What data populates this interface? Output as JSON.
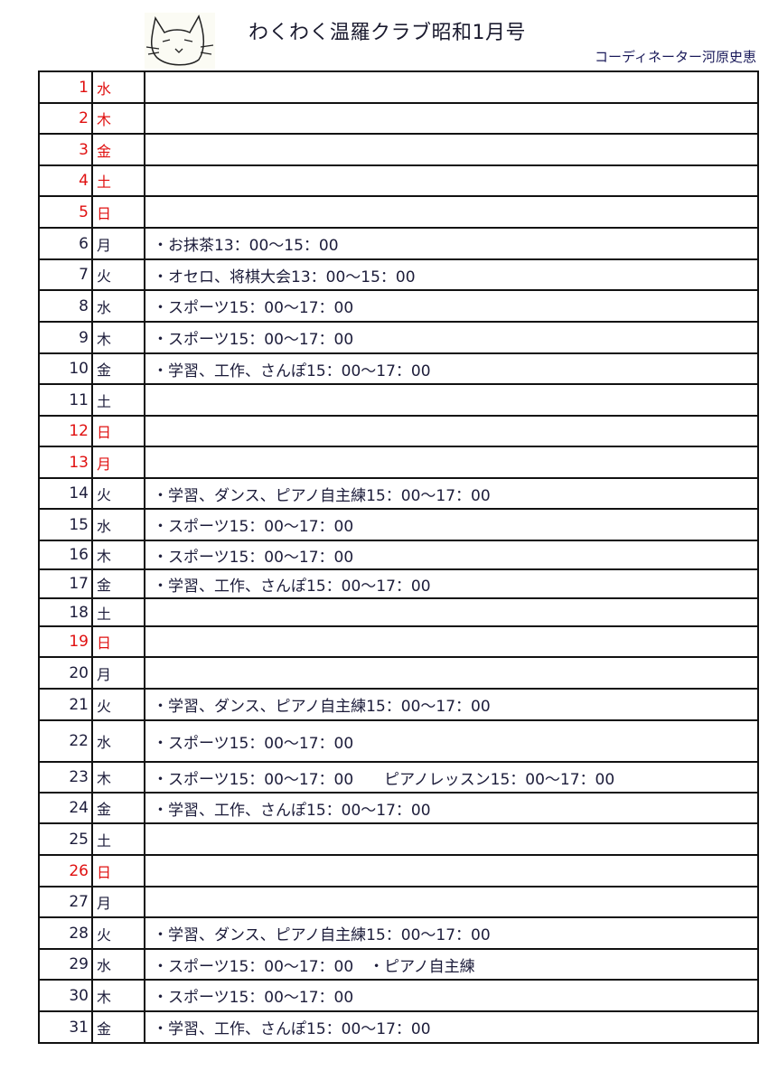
{
  "header": {
    "title": "わくわく温羅クラブ昭和1月号",
    "coordinator": "コーディネーター河原史恵",
    "logo": "cat-drawing"
  },
  "colors": {
    "holiday": "#e01010",
    "text": "#1c1c3a"
  },
  "days": [
    {
      "d": "1",
      "w": "水",
      "e": "",
      "red": true
    },
    {
      "d": "2",
      "w": "木",
      "e": "",
      "red": true
    },
    {
      "d": "3",
      "w": "金",
      "e": "",
      "red": true
    },
    {
      "d": "4",
      "w": "土",
      "e": "",
      "red": true
    },
    {
      "d": "5",
      "w": "日",
      "e": "",
      "red": true
    },
    {
      "d": "6",
      "w": "月",
      "e": "・お抹茶13：00～15：00"
    },
    {
      "d": "7",
      "w": "火",
      "e": "・オセロ、将棋大会13：00～15：00"
    },
    {
      "d": "8",
      "w": "水",
      "e": "・スポーツ15：00～17：00"
    },
    {
      "d": "9",
      "w": "木",
      "e": "・スポーツ15：00～17：00"
    },
    {
      "d": "10",
      "w": "金",
      "e": "・学習、工作、さんぽ15：00～17：00"
    },
    {
      "d": "11",
      "w": "土",
      "e": ""
    },
    {
      "d": "12",
      "w": "日",
      "e": "",
      "red": true
    },
    {
      "d": "13",
      "w": "月",
      "e": "",
      "red": true
    },
    {
      "d": "14",
      "w": "火",
      "e": "・学習、ダンス、ピアノ自主練15：00～17：00"
    },
    {
      "d": "15",
      "w": "水",
      "e": "・スポーツ15：00～17：00"
    },
    {
      "d": "16",
      "w": "木",
      "e": "・スポーツ15：00～17：00"
    },
    {
      "d": "17",
      "w": "金",
      "e": "・学習、工作、さんぽ15：00～17：00"
    },
    {
      "d": "18",
      "w": "土",
      "e": ""
    },
    {
      "d": "19",
      "w": "日",
      "e": "",
      "red": true
    },
    {
      "d": "20",
      "w": "月",
      "e": ""
    },
    {
      "d": "21",
      "w": "火",
      "e": "・学習、ダンス、ピアノ自主練15：00～17：00"
    },
    {
      "d": "22",
      "w": "水",
      "e": "・スポーツ15：00～17：00"
    },
    {
      "d": "23",
      "w": "木",
      "e": "・スポーツ15：00～17：00　　ピアノレッスン15：00～17：00"
    },
    {
      "d": "24",
      "w": "金",
      "e": "・学習、工作、さんぽ15：00～17：00"
    },
    {
      "d": "25",
      "w": "土",
      "e": ""
    },
    {
      "d": "26",
      "w": "日",
      "e": "",
      "red": true
    },
    {
      "d": "27",
      "w": "月",
      "e": ""
    },
    {
      "d": "28",
      "w": "火",
      "e": "・学習、ダンス、ピアノ自主練15：00～17：00"
    },
    {
      "d": "29",
      "w": "水",
      "e": "・スポーツ15：00～17：00　・ピアノ自主練"
    },
    {
      "d": "30",
      "w": "木",
      "e": "・スポーツ15：00～17：00"
    },
    {
      "d": "31",
      "w": "金",
      "e": "・学習、工作、さんぽ15：00～17：00"
    }
  ]
}
